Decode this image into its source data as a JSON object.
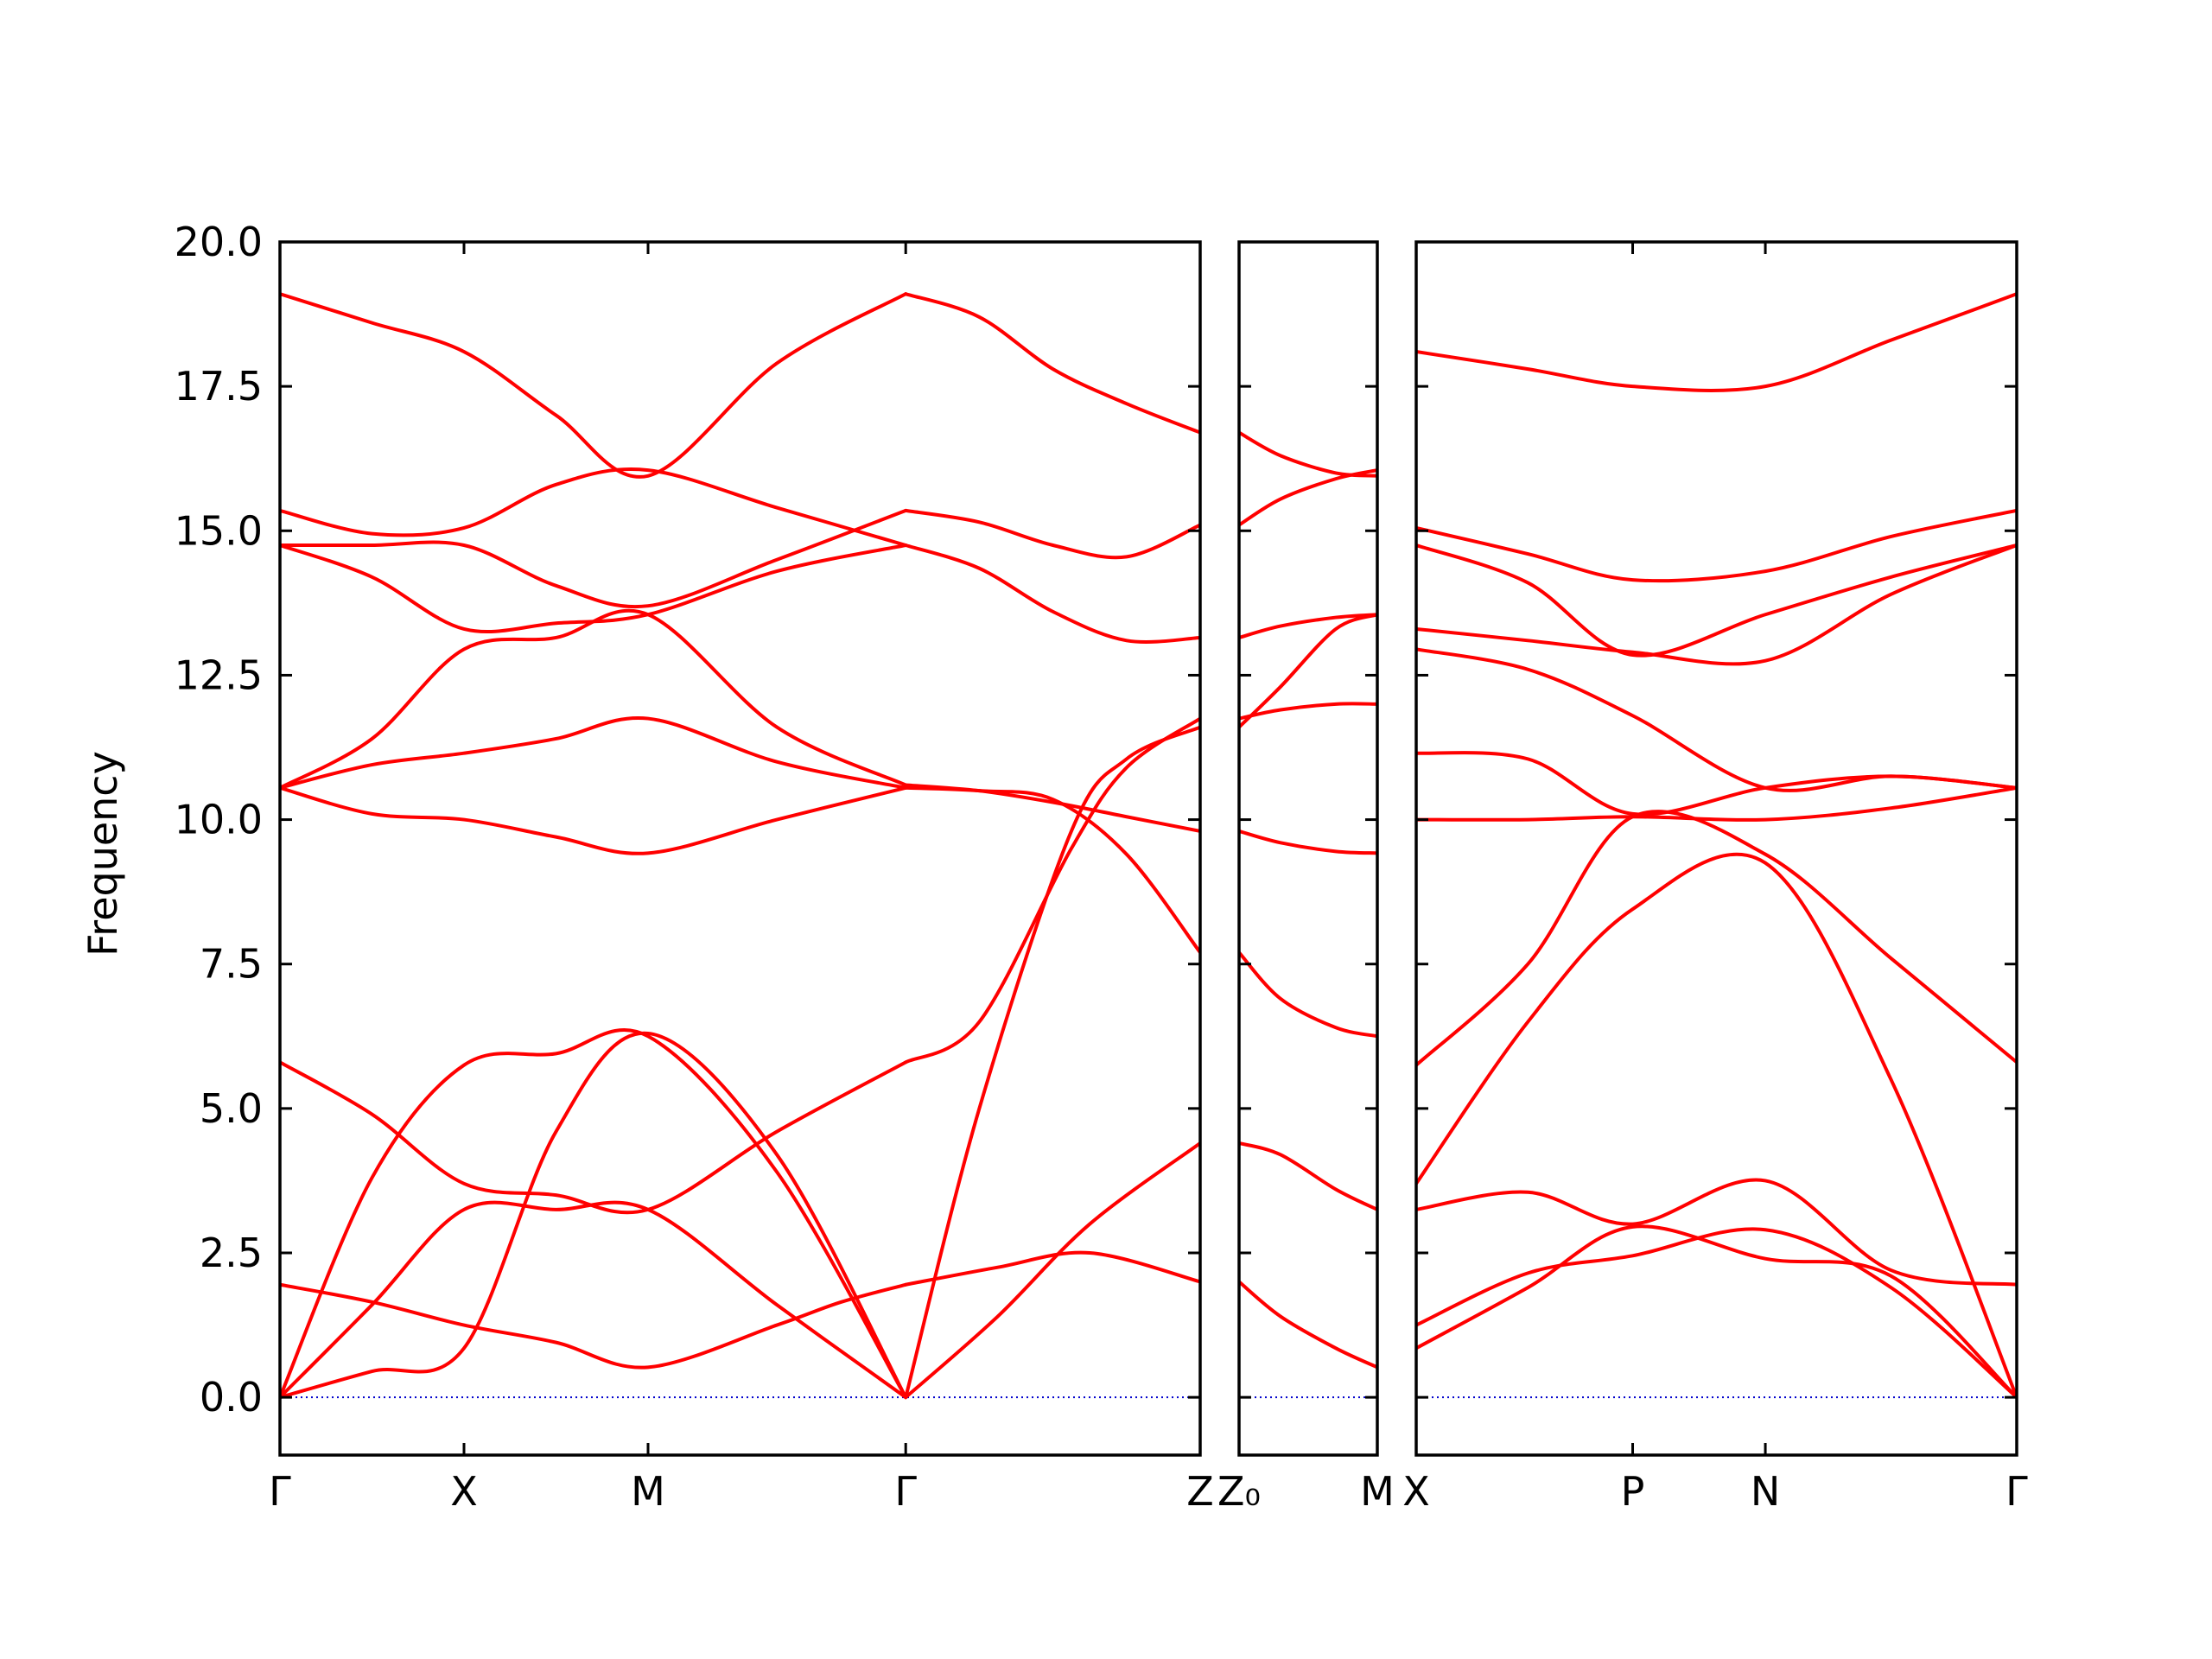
{
  "chart_data": {
    "type": "line",
    "title": "",
    "ylabel": "Frequency",
    "xlabel": "",
    "ylim": [
      -1.0,
      20.0
    ],
    "yticks": [
      0.0,
      2.5,
      5.0,
      7.5,
      10.0,
      12.5,
      15.0,
      17.5,
      20.0
    ],
    "ytick_labels": [
      "0.0",
      "2.5",
      "5.0",
      "7.5",
      "10.0",
      "12.5",
      "15.0",
      "17.5",
      "20.0"
    ],
    "grid": false,
    "legend": "none",
    "line_color": "#ff0000",
    "zero_line_color": "#0000cc",
    "panels": [
      {
        "name": "panel-1",
        "x_range": [
          0,
          5
        ],
        "xticks": [
          0,
          1,
          2,
          3.4,
          5
        ],
        "xtick_labels": [
          "Γ",
          "X",
          "M",
          "Γ",
          "Z"
        ],
        "series": [
          {
            "x": [
              0,
              0.5,
              1,
              1.5,
              2,
              2.7,
              3.4
            ],
            "y": [
              0.0,
              0.45,
              0.85,
              4.6,
              6.3,
              4.2,
              0.0
            ]
          },
          {
            "x": [
              0,
              0.5,
              1,
              1.5,
              2,
              2.7,
              3.4
            ],
            "y": [
              0.0,
              1.6,
              3.25,
              3.25,
              3.25,
              1.6,
              0.0
            ]
          },
          {
            "x": [
              0,
              0.5,
              1,
              1.5,
              2,
              2.7,
              3.4
            ],
            "y": [
              0.0,
              3.8,
              5.75,
              5.95,
              6.25,
              3.9,
              0.0
            ]
          },
          {
            "x": [
              0,
              0.5,
              1,
              1.5,
              2,
              2.7,
              3.05,
              3.4
            ],
            "y": [
              1.95,
              1.65,
              1.25,
              0.95,
              0.52,
              1.25,
              1.65,
              1.95
            ]
          },
          {
            "x": [
              0,
              0.5,
              1,
              1.5,
              2,
              2.7,
              3.4
            ],
            "y": [
              5.8,
              4.9,
              3.7,
              3.5,
              3.25,
              4.6,
              5.8
            ]
          },
          {
            "x": [
              0,
              0.5,
              1,
              1.5,
              2,
              2.7,
              3.4
            ],
            "y": [
              10.55,
              10.1,
              10.0,
              9.7,
              9.42,
              10.0,
              10.55
            ]
          },
          {
            "x": [
              0,
              0.5,
              1,
              1.5,
              2,
              2.7,
              3.4
            ],
            "y": [
              10.55,
              10.95,
              11.15,
              11.4,
              11.75,
              11.0,
              10.55
            ]
          },
          {
            "x": [
              0,
              0.5,
              1,
              1.5,
              2,
              2.7,
              3.4
            ],
            "y": [
              10.55,
              11.4,
              12.95,
              13.15,
              13.55,
              11.6,
              10.6
            ]
          },
          {
            "x": [
              0,
              0.5,
              1,
              1.5,
              2,
              2.7,
              3.4
            ],
            "y": [
              14.75,
              14.2,
              13.3,
              13.4,
              13.55,
              14.3,
              14.75
            ]
          },
          {
            "x": [
              0,
              0.5,
              1,
              1.5,
              2,
              2.7,
              3.4
            ],
            "y": [
              14.75,
              14.75,
              14.75,
              14.05,
              13.7,
              14.5,
              15.35
            ]
          },
          {
            "x": [
              0,
              0.5,
              1,
              1.5,
              2,
              2.7,
              3.4
            ],
            "y": [
              15.35,
              14.95,
              15.05,
              15.8,
              16.05,
              15.4,
              14.75
            ]
          },
          {
            "x": [
              0,
              0.5,
              1,
              1.5,
              2,
              2.7,
              3.4
            ],
            "y": [
              19.1,
              18.6,
              18.1,
              17.0,
              15.95,
              17.9,
              19.1
            ]
          },
          {
            "x": [
              3.4,
              3.9,
              4.4,
              5.0
            ],
            "y": [
              1.95,
              2.25,
              2.5,
              2.0
            ]
          },
          {
            "x": [
              3.4,
              3.9,
              4.4,
              5.0
            ],
            "y": [
              0.0,
              1.4,
              3.0,
              4.4
            ]
          },
          {
            "x": [
              3.4,
              3.8,
              4.3,
              4.6,
              5.0
            ],
            "y": [
              0.0,
              5.0,
              9.8,
              11.05,
              11.6
            ]
          },
          {
            "x": [
              3.4,
              3.8,
              4.3,
              4.6,
              5.0
            ],
            "y": [
              5.8,
              6.5,
              9.5,
              10.9,
              11.75
            ]
          },
          {
            "x": [
              3.4,
              3.8,
              4.2,
              4.6,
              5.0
            ],
            "y": [
              10.55,
              10.5,
              10.35,
              9.4,
              7.7
            ]
          },
          {
            "x": [
              3.4,
              3.8,
              4.2,
              4.6,
              5.0
            ],
            "y": [
              10.6,
              10.5,
              10.3,
              10.05,
              9.8
            ]
          },
          {
            "x": [
              3.4,
              3.8,
              4.2,
              4.6,
              5.0
            ],
            "y": [
              14.75,
              14.35,
              13.6,
              13.1,
              13.15
            ]
          },
          {
            "x": [
              3.4,
              3.8,
              4.2,
              4.6,
              5.0
            ],
            "y": [
              15.35,
              15.15,
              14.75,
              14.55,
              15.1
            ]
          },
          {
            "x": [
              3.4,
              3.8,
              4.2,
              4.6,
              5.0
            ],
            "y": [
              19.1,
              18.7,
              17.8,
              17.2,
              16.7
            ]
          }
        ]
      },
      {
        "name": "panel-2",
        "x_range": [
          0,
          1
        ],
        "xticks": [
          0,
          1
        ],
        "xtick_labels": [
          "Z₀",
          "M"
        ],
        "series": [
          {
            "x": [
              0,
              0.3,
              0.7,
              1
            ],
            "y": [
              2.0,
              1.4,
              0.85,
              0.52
            ]
          },
          {
            "x": [
              0,
              0.3,
              0.7,
              1
            ],
            "y": [
              4.4,
              4.2,
              3.6,
              3.25
            ]
          },
          {
            "x": [
              0,
              0.3,
              0.7,
              1
            ],
            "y": [
              7.7,
              6.9,
              6.4,
              6.25
            ]
          },
          {
            "x": [
              0,
              0.3,
              0.7,
              1
            ],
            "y": [
              9.8,
              9.6,
              9.45,
              9.42
            ]
          },
          {
            "x": [
              0,
              0.3,
              0.7,
              1
            ],
            "y": [
              11.6,
              12.3,
              13.3,
              13.55
            ]
          },
          {
            "x": [
              0,
              0.3,
              0.7,
              1
            ],
            "y": [
              11.75,
              11.9,
              12.0,
              12.0
            ]
          },
          {
            "x": [
              0,
              0.3,
              0.7,
              1
            ],
            "y": [
              13.15,
              13.35,
              13.5,
              13.55
            ]
          },
          {
            "x": [
              0,
              0.3,
              0.7,
              1
            ],
            "y": [
              15.1,
              15.55,
              15.9,
              16.05
            ]
          },
          {
            "x": [
              0,
              0.3,
              0.7,
              1
            ],
            "y": [
              16.7,
              16.3,
              16.0,
              15.95
            ]
          }
        ]
      },
      {
        "name": "panel-3",
        "x_range": [
          0,
          4.3
        ],
        "xticks": [
          0,
          1.55,
          2.5,
          4.3
        ],
        "xtick_labels": [
          "X",
          "P",
          "N",
          "Γ"
        ],
        "series": [
          {
            "x": [
              0,
              0.8,
              1.55,
              2.5,
              3.4,
              4.3
            ],
            "y": [
              0.85,
              1.9,
              2.95,
              2.4,
              2.1,
              0.0
            ]
          },
          {
            "x": [
              0,
              0.8,
              1.55,
              2.5,
              3.4,
              4.3
            ],
            "y": [
              1.25,
              2.15,
              2.45,
              2.9,
              1.9,
              0.0
            ]
          },
          {
            "x": [
              0,
              0.8,
              1.55,
              2.5,
              3.4,
              4.3
            ],
            "y": [
              3.25,
              3.55,
              3.0,
              3.75,
              2.2,
              1.95
            ]
          },
          {
            "x": [
              0,
              0.8,
              1.55,
              2.5,
              3.4,
              4.3
            ],
            "y": [
              3.7,
              6.5,
              8.45,
              9.25,
              5.5,
              0.0
            ]
          },
          {
            "x": [
              0,
              0.8,
              1.55,
              2.5,
              3.4,
              4.3
            ],
            "y": [
              5.75,
              7.5,
              10.05,
              9.4,
              7.6,
              5.8
            ]
          },
          {
            "x": [
              0,
              0.8,
              1.55,
              2.5,
              3.4,
              4.3
            ],
            "y": [
              10.0,
              10.0,
              10.05,
              10.0,
              10.2,
              10.55
            ]
          },
          {
            "x": [
              0,
              0.8,
              1.55,
              2.5,
              3.4,
              4.3
            ],
            "y": [
              11.15,
              11.05,
              10.1,
              10.55,
              10.75,
              10.55
            ]
          },
          {
            "x": [
              0,
              0.8,
              1.55,
              2.5,
              3.4,
              4.3
            ],
            "y": [
              12.95,
              12.6,
              11.8,
              10.55,
              10.75,
              10.55
            ]
          },
          {
            "x": [
              0,
              0.8,
              1.55,
              2.5,
              3.4,
              4.3
            ],
            "y": [
              13.3,
              13.1,
              12.9,
              12.75,
              13.9,
              14.75
            ]
          },
          {
            "x": [
              0,
              0.8,
              1.55,
              2.5,
              3.4,
              4.3
            ],
            "y": [
              14.75,
              14.1,
              12.85,
              13.55,
              14.2,
              14.75
            ]
          },
          {
            "x": [
              0,
              0.8,
              1.55,
              2.5,
              3.4,
              4.3
            ],
            "y": [
              15.05,
              14.6,
              14.15,
              14.3,
              14.9,
              15.35
            ]
          },
          {
            "x": [
              0,
              0.8,
              1.55,
              2.5,
              3.4,
              4.3
            ],
            "y": [
              18.1,
              17.8,
              17.5,
              17.5,
              18.3,
              19.1
            ]
          }
        ]
      }
    ]
  }
}
